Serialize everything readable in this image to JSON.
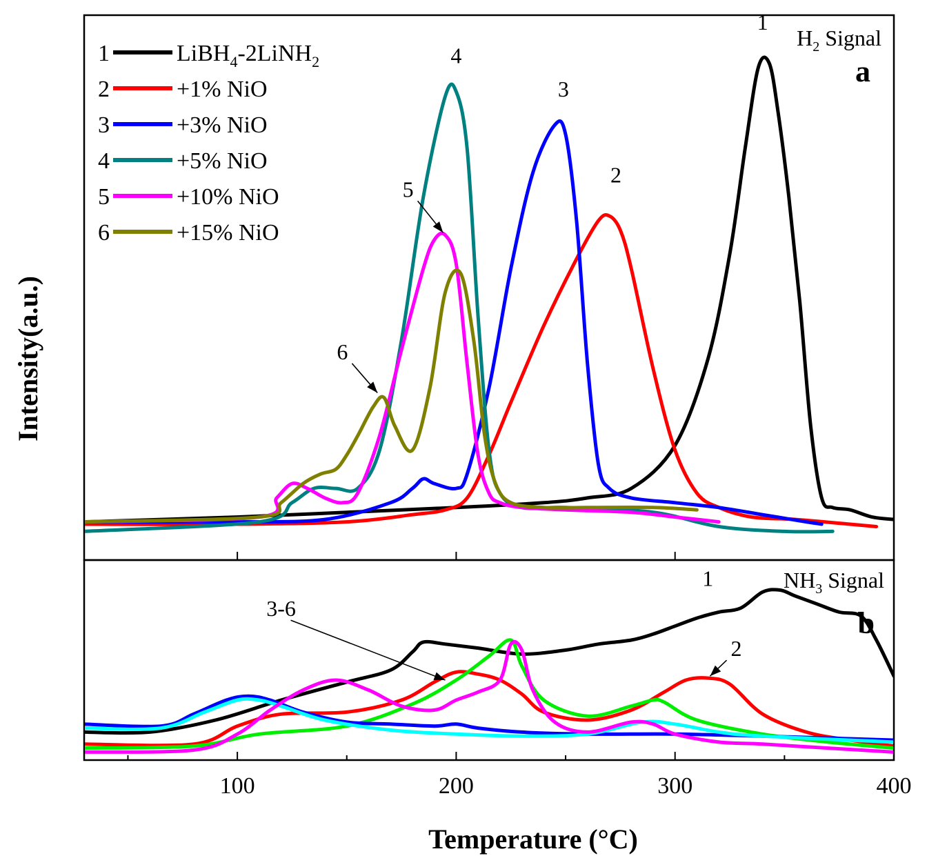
{
  "chart_data": {
    "type": "line",
    "xlabel": "Temperature (°C)",
    "ylabel": "Intensity(a.u.)",
    "xlim": [
      30,
      400
    ],
    "xticks": [
      100,
      200,
      300,
      400
    ],
    "panels": [
      {
        "id": "a",
        "letter": "a",
        "signal": "H2 Signal",
        "ylim": [
          0,
          1
        ],
        "legend_placement": "top-left",
        "series": [
          {
            "id": "1",
            "name": "LiBH4-2LiNH2",
            "color": "#000000",
            "x": [
              30,
              100,
              150,
              200,
              240,
              260,
              280,
              300,
              315,
              325,
              332,
              338,
              343,
              347,
              352,
              357,
              362,
              367,
              372,
              380,
              390,
              400
            ],
            "y": [
              0.02,
              0.03,
              0.04,
              0.05,
              0.06,
              0.07,
              0.09,
              0.18,
              0.36,
              0.58,
              0.8,
              0.97,
              0.98,
              0.88,
              0.7,
              0.48,
              0.22,
              0.07,
              0.05,
              0.045,
              0.03,
              0.025
            ]
          },
          {
            "id": "2",
            "name": "+1% NiO",
            "color": "#ff0000",
            "x": [
              30,
              100,
              150,
              180,
              195,
              205,
              215,
              225,
              240,
              255,
              265,
              270,
              275,
              280,
              290,
              300,
              310,
              320,
              335,
              355,
              380,
              392
            ],
            "y": [
              0.015,
              0.015,
              0.02,
              0.035,
              0.045,
              0.07,
              0.16,
              0.27,
              0.43,
              0.57,
              0.65,
              0.66,
              0.63,
              0.55,
              0.34,
              0.17,
              0.08,
              0.05,
              0.03,
              0.025,
              0.015,
              0.01
            ]
          },
          {
            "id": "3",
            "name": "+3% NiO",
            "color": "#0000ff",
            "x": [
              30,
              100,
              140,
              170,
              180,
              185,
              190,
              200,
              205,
              215,
              225,
              235,
              245,
              250,
              255,
              260,
              265,
              270,
              280,
              300,
              320,
              340,
              360,
              367
            ],
            "y": [
              0.02,
              0.02,
              0.025,
              0.06,
              0.09,
              0.11,
              0.1,
              0.09,
              0.12,
              0.3,
              0.55,
              0.75,
              0.85,
              0.83,
              0.65,
              0.35,
              0.14,
              0.09,
              0.07,
              0.06,
              0.05,
              0.035,
              0.02,
              0.015
            ]
          },
          {
            "id": "4",
            "name": "+5% NiO",
            "color": "#008080",
            "x": [
              30,
              110,
              125,
              135,
              145,
              155,
              165,
              175,
              185,
              195,
              200,
              205,
              210,
              215,
              220,
              230,
              250,
              290,
              320,
              350,
              372
            ],
            "y": [
              0.0,
              0.02,
              0.06,
              0.09,
              0.09,
              0.09,
              0.17,
              0.4,
              0.7,
              0.91,
              0.92,
              0.8,
              0.45,
              0.17,
              0.08,
              0.05,
              0.05,
              0.04,
              0.01,
              0.0,
              0.0
            ]
          },
          {
            "id": "5",
            "name": "+10% NiO",
            "color": "#ff00ff",
            "x": [
              30,
              110,
              118,
              125,
              132,
              140,
              148,
              155,
              165,
              175,
              185,
              190,
              195,
              200,
              205,
              210,
              215,
              220,
              230,
              250,
              280,
              300,
              320
            ],
            "y": [
              0.02,
              0.03,
              0.07,
              0.1,
              0.09,
              0.07,
              0.06,
              0.08,
              0.2,
              0.38,
              0.55,
              0.61,
              0.62,
              0.56,
              0.35,
              0.16,
              0.08,
              0.06,
              0.05,
              0.045,
              0.04,
              0.03,
              0.02
            ]
          },
          {
            "id": "6",
            "name": "+15% NiO",
            "color": "#808000",
            "x": [
              30,
              110,
              120,
              130,
              138,
              145,
              150,
              155,
              162,
              167,
              172,
              180,
              188,
              195,
              202,
              208,
              213,
              218,
              225,
              240,
              260,
              290,
              310
            ],
            "y": [
              0.02,
              0.03,
              0.06,
              0.1,
              0.12,
              0.13,
              0.16,
              0.2,
              0.26,
              0.28,
              0.22,
              0.17,
              0.3,
              0.5,
              0.54,
              0.4,
              0.2,
              0.1,
              0.06,
              0.05,
              0.05,
              0.05,
              0.045
            ]
          }
        ],
        "labels": [
          {
            "text": "1",
            "x": 340,
            "y": 1.05
          },
          {
            "text": "2",
            "x": 273,
            "y": 0.73
          },
          {
            "text": "3",
            "x": 249,
            "y": 0.91
          },
          {
            "text": "4",
            "x": 200,
            "y": 0.98
          },
          {
            "text": "5",
            "x": 178,
            "y": 0.7,
            "arrow_to": [
              194,
              0.625
            ]
          },
          {
            "text": "6",
            "x": 148,
            "y": 0.36,
            "arrow_to": [
              164,
              0.29
            ]
          }
        ]
      },
      {
        "id": "b",
        "letter": "b",
        "signal": "NH3 Signal",
        "ylim": [
          0,
          1
        ],
        "series": [
          {
            "id": "1",
            "color": "#000000",
            "x": [
              30,
              60,
              90,
              120,
              150,
              170,
              180,
              185,
              195,
              210,
              230,
              250,
              265,
              280,
              290,
              300,
              310,
              320,
              330,
              340,
              348,
              355,
              365,
              375,
              385,
              392,
              400
            ],
            "y": [
              0.14,
              0.14,
              0.2,
              0.3,
              0.39,
              0.45,
              0.54,
              0.59,
              0.58,
              0.56,
              0.53,
              0.55,
              0.58,
              0.6,
              0.63,
              0.67,
              0.71,
              0.74,
              0.76,
              0.84,
              0.85,
              0.82,
              0.78,
              0.74,
              0.72,
              0.6,
              0.42
            ]
          },
          {
            "id": "2",
            "color": "#ff0000",
            "x": [
              30,
              80,
              100,
              120,
              150,
              175,
              190,
              200,
              210,
              220,
              230,
              240,
              260,
              280,
              295,
              305,
              315,
              325,
              340,
              360,
              380,
              400
            ],
            "y": [
              0.08,
              0.08,
              0.17,
              0.23,
              0.24,
              0.3,
              0.39,
              0.44,
              0.43,
              0.4,
              0.33,
              0.24,
              0.2,
              0.25,
              0.34,
              0.4,
              0.41,
              0.38,
              0.23,
              0.14,
              0.1,
              0.07
            ]
          },
          {
            "id": "green",
            "color": "#00ee00",
            "x": [
              30,
              80,
              110,
              150,
              180,
              200,
              215,
              225,
              230,
              240,
              260,
              280,
              290,
              295,
              310,
              340,
              370,
              400
            ],
            "y": [
              0.06,
              0.07,
              0.13,
              0.17,
              0.28,
              0.4,
              0.52,
              0.6,
              0.47,
              0.3,
              0.22,
              0.27,
              0.3,
              0.29,
              0.2,
              0.13,
              0.09,
              0.06
            ]
          },
          {
            "id": "blue",
            "color": "#0000ff",
            "x": [
              30,
              65,
              80,
              95,
              105,
              115,
              130,
              150,
              170,
              190,
              200,
              210,
              230,
              260,
              300,
              340,
              400
            ],
            "y": [
              0.18,
              0.17,
              0.23,
              0.3,
              0.32,
              0.3,
              0.24,
              0.19,
              0.18,
              0.17,
              0.18,
              0.16,
              0.14,
              0.13,
              0.13,
              0.12,
              0.1
            ]
          },
          {
            "id": "cyan",
            "color": "#00ffff",
            "x": [
              30,
              65,
              85,
              100,
              110,
              120,
              140,
              170,
              200,
              230,
              260,
              285,
              300,
              320,
              340,
              400
            ],
            "y": [
              0.16,
              0.16,
              0.24,
              0.3,
              0.3,
              0.27,
              0.2,
              0.15,
              0.13,
              0.12,
              0.13,
              0.19,
              0.18,
              0.14,
              0.12,
              0.09
            ]
          },
          {
            "id": "magenta",
            "color": "#ff00ff",
            "x": [
              30,
              80,
              100,
              115,
              130,
              145,
              160,
              175,
              190,
              200,
              210,
              220,
              225,
              230,
              235,
              245,
              260,
              280,
              290,
              300,
              320,
              340,
              370,
              400
            ],
            "y": [
              0.04,
              0.05,
              0.13,
              0.25,
              0.35,
              0.4,
              0.35,
              0.27,
              0.25,
              0.3,
              0.34,
              0.4,
              0.58,
              0.55,
              0.35,
              0.19,
              0.14,
              0.19,
              0.18,
              0.13,
              0.09,
              0.08,
              0.06,
              0.04
            ]
          }
        ],
        "labels": [
          {
            "text": "1",
            "x": 315,
            "y": 0.87
          },
          {
            "text": "2",
            "x": 328,
            "y": 0.52,
            "arrow_to": [
              316,
              0.42
            ]
          },
          {
            "text": "3-6",
            "x": 120,
            "y": 0.72,
            "arrow_to": [
              195,
              0.4
            ]
          }
        ]
      }
    ],
    "legend": [
      {
        "number": "1",
        "base": "LiBH",
        "sub1": "4",
        "mid": "-2LiNH",
        "sub2": "2",
        "color": "#000000"
      },
      {
        "number": "2",
        "base": "+1% NiO",
        "color": "#ff0000"
      },
      {
        "number": "3",
        "base": "+3% NiO",
        "color": "#0000ff"
      },
      {
        "number": "4",
        "base": "+5% NiO",
        "color": "#008080"
      },
      {
        "number": "5",
        "base": "+10% NiO",
        "color": "#ff00ff"
      },
      {
        "number": "6",
        "base": "+15% NiO",
        "color": "#808000"
      }
    ]
  }
}
